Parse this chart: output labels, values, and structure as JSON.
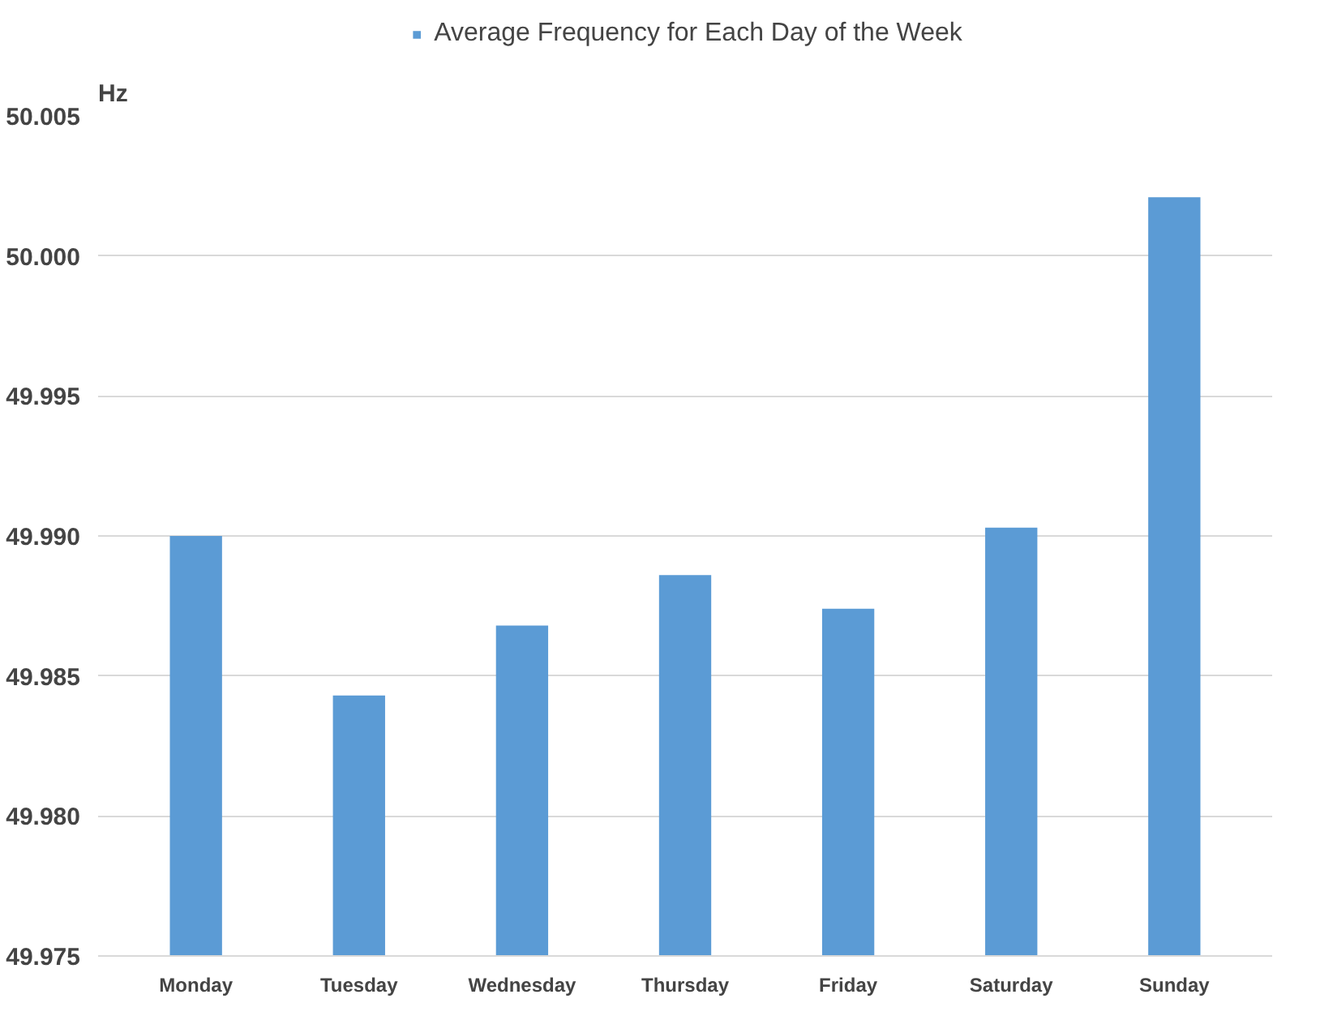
{
  "chart_data": {
    "type": "bar",
    "ylabel": "Hz",
    "categories": [
      "Monday",
      "Tuesday",
      "Wednesday",
      "Thursday",
      "Friday",
      "Saturday",
      "Sunday"
    ],
    "series": [
      {
        "name": "Average Frequency for Each Day of the Week",
        "color": "#5b9bd5",
        "values": [
          49.99,
          49.9843,
          49.9868,
          49.9886,
          49.9874,
          49.9903,
          50.0021
        ]
      }
    ],
    "ylim": [
      49.975,
      50.005
    ],
    "yticks": [
      {
        "value": 49.975,
        "label": "49.975"
      },
      {
        "value": 49.98,
        "label": "49.980"
      },
      {
        "value": 49.985,
        "label": "49.985"
      },
      {
        "value": 49.99,
        "label": "49.990"
      },
      {
        "value": 49.995,
        "label": "49.995"
      },
      {
        "value": 50.0,
        "label": "50.000"
      },
      {
        "value": 50.005,
        "label": "50.005"
      }
    ],
    "grid": "y",
    "legend": "top"
  }
}
